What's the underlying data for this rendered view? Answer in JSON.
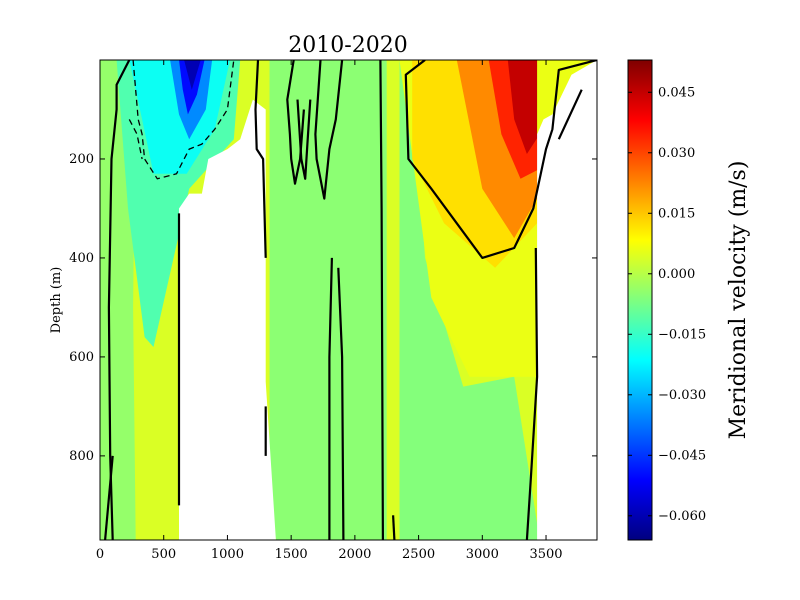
{
  "chart_data": {
    "type": "heatmap",
    "title": "2010-2020",
    "xlabel": "",
    "ylabel": "Depth (m)",
    "xlim": [
      0,
      3900
    ],
    "ylim": [
      970,
      0
    ],
    "xticks": [
      0,
      500,
      1000,
      1500,
      2000,
      2500,
      3000,
      3500
    ],
    "yticks": [
      200,
      400,
      600,
      800
    ],
    "x_tick_labels": [
      "0",
      "500",
      "1000",
      "1500",
      "2000",
      "2500",
      "3000",
      "3500"
    ],
    "y_tick_labels": [
      "200",
      "400",
      "600",
      "800"
    ],
    "colorbar": {
      "label": "Meridional velocity (m/s)",
      "range": [
        -0.066,
        0.053
      ],
      "ticks": [
        -0.06,
        -0.045,
        -0.03,
        -0.015,
        0.0,
        0.015,
        0.03,
        0.045
      ],
      "tick_labels": [
        "−0.060",
        "−0.045",
        "−0.030",
        "−0.015",
        "0.000",
        "0.015",
        "0.030",
        "0.045"
      ],
      "colormap": "jet"
    },
    "fields": [
      {
        "name": "background",
        "value": 0.004,
        "polygon": [
          [
            0,
            0
          ],
          [
            3900,
            0
          ],
          [
            3900,
            970
          ],
          [
            0,
            970
          ]
        ]
      },
      {
        "name": "west-band",
        "value": -0.004,
        "polygon": [
          [
            0,
            0
          ],
          [
            280,
            0
          ],
          [
            260,
            500
          ],
          [
            280,
            970
          ],
          [
            0,
            970
          ]
        ]
      },
      {
        "name": "west-negative",
        "value": -0.012,
        "polygon": [
          [
            130,
            0
          ],
          [
            1100,
            0
          ],
          [
            1050,
            160
          ],
          [
            700,
            260
          ],
          [
            420,
            580
          ],
          [
            350,
            560
          ],
          [
            220,
            300
          ]
        ]
      },
      {
        "name": "cyan-core",
        "value": -0.02,
        "polygon": [
          [
            230,
            0
          ],
          [
            1020,
            0
          ],
          [
            900,
            140
          ],
          [
            680,
            230
          ],
          [
            420,
            230
          ],
          [
            330,
            120
          ]
        ]
      },
      {
        "name": "central-band",
        "value": -0.005,
        "polygon": [
          [
            1330,
            0
          ],
          [
            2250,
            0
          ],
          [
            2250,
            970
          ],
          [
            1380,
            970
          ],
          [
            1330,
            850
          ]
        ]
      },
      {
        "name": "east-shelf",
        "value": -0.006,
        "polygon": [
          [
            2350,
            0
          ],
          [
            2450,
            0
          ],
          [
            2550,
            400
          ],
          [
            2850,
            660
          ],
          [
            3250,
            640
          ],
          [
            3450,
            970
          ],
          [
            2350,
            970
          ]
        ]
      },
      {
        "name": "east-positive",
        "value": 0.006,
        "polygon": [
          [
            2350,
            0
          ],
          [
            3430,
            0
          ],
          [
            3430,
            640
          ],
          [
            2900,
            640
          ],
          [
            2600,
            480
          ]
        ]
      },
      {
        "name": "yellow-band",
        "value": 0.012,
        "polygon": [
          [
            2450,
            0
          ],
          [
            3430,
            0
          ],
          [
            3430,
            330
          ],
          [
            3100,
            420
          ],
          [
            2700,
            330
          ],
          [
            2450,
            200
          ]
        ]
      },
      {
        "name": "orange-band",
        "value": 0.022,
        "polygon": [
          [
            2800,
            0
          ],
          [
            3430,
            0
          ],
          [
            3430,
            280
          ],
          [
            3250,
            360
          ],
          [
            3000,
            260
          ]
        ]
      },
      {
        "name": "red-band",
        "value": 0.034,
        "polygon": [
          [
            3050,
            0
          ],
          [
            3500,
            0
          ],
          [
            3450,
            220
          ],
          [
            3300,
            240
          ],
          [
            3150,
            150
          ]
        ]
      },
      {
        "name": "red-core",
        "value": 0.045,
        "polygon": [
          [
            3200,
            0
          ],
          [
            3500,
            0
          ],
          [
            3450,
            150
          ],
          [
            3350,
            190
          ],
          [
            3250,
            120
          ]
        ]
      },
      {
        "name": "east-edge",
        "value": 0.006,
        "polygon": [
          [
            3430,
            0
          ],
          [
            3900,
            0
          ],
          [
            3900,
            20
          ],
          [
            3600,
            150
          ],
          [
            3430,
            150
          ]
        ]
      },
      {
        "name": "blue-strong",
        "value": -0.035,
        "polygon": [
          [
            550,
            0
          ],
          [
            880,
            0
          ],
          [
            830,
            100
          ],
          [
            700,
            160
          ],
          [
            620,
            110
          ]
        ]
      },
      {
        "name": "blue-core",
        "value": -0.05,
        "polygon": [
          [
            620,
            0
          ],
          [
            820,
            0
          ],
          [
            760,
            70
          ],
          [
            690,
            110
          ],
          [
            650,
            60
          ]
        ]
      },
      {
        "name": "blue-max",
        "value": -0.06,
        "polygon": [
          [
            660,
            0
          ],
          [
            790,
            0
          ],
          [
            720,
            60
          ]
        ]
      }
    ],
    "masked": [
      {
        "name": "bathymetry-left",
        "polygon": [
          [
            620,
            970
          ],
          [
            620,
            300
          ],
          [
            700,
            270
          ],
          [
            800,
            270
          ],
          [
            850,
            200
          ],
          [
            1000,
            180
          ],
          [
            1100,
            160
          ],
          [
            1200,
            80
          ],
          [
            1300,
            100
          ],
          [
            1300,
            650
          ],
          [
            1380,
            970
          ]
        ]
      },
      {
        "name": "bathymetry-right",
        "polygon": [
          [
            3430,
            970
          ],
          [
            3430,
            150
          ],
          [
            3480,
            120
          ],
          [
            3550,
            110
          ],
          [
            3700,
            30
          ],
          [
            3900,
            0
          ],
          [
            3900,
            970
          ]
        ]
      }
    ],
    "contours": [
      {
        "style": "solid",
        "points": [
          [
            230,
            0
          ],
          [
            130,
            50
          ],
          [
            130,
            100
          ],
          [
            90,
            200
          ],
          [
            70,
            500
          ],
          [
            80,
            800
          ],
          [
            100,
            970
          ]
        ]
      },
      {
        "style": "solid",
        "points": [
          [
            100,
            800
          ],
          [
            40,
            970
          ]
        ]
      },
      {
        "style": "dashed",
        "points": [
          [
            260,
            0
          ],
          [
            300,
            120
          ],
          [
            330,
            150
          ],
          [
            350,
            200
          ],
          [
            450,
            240
          ],
          [
            600,
            230
          ],
          [
            700,
            180
          ],
          [
            800,
            170
          ],
          [
            900,
            140
          ],
          [
            1000,
            100
          ],
          [
            1050,
            0
          ]
        ]
      },
      {
        "style": "dashed",
        "points": [
          [
            230,
            120
          ],
          [
            290,
            150
          ],
          [
            330,
            200
          ]
        ]
      },
      {
        "style": "solid",
        "points": [
          [
            620,
            310
          ],
          [
            620,
            900
          ]
        ]
      },
      {
        "style": "solid",
        "points": [
          [
            1240,
            0
          ],
          [
            1220,
            100
          ],
          [
            1230,
            180
          ],
          [
            1280,
            200
          ],
          [
            1300,
            400
          ]
        ]
      },
      {
        "style": "solid",
        "points": [
          [
            1300,
            700
          ],
          [
            1300,
            800
          ]
        ]
      },
      {
        "style": "solid",
        "points": [
          [
            1520,
            0
          ],
          [
            1470,
            80
          ],
          [
            1490,
            150
          ],
          [
            1500,
            200
          ],
          [
            1530,
            250
          ],
          [
            1570,
            200
          ],
          [
            1600,
            100
          ]
        ]
      },
      {
        "style": "solid",
        "points": [
          [
            1550,
            80
          ],
          [
            1580,
            200
          ],
          [
            1610,
            240
          ],
          [
            1630,
            160
          ],
          [
            1650,
            80
          ]
        ]
      },
      {
        "style": "solid",
        "points": [
          [
            1730,
            0
          ],
          [
            1690,
            150
          ],
          [
            1700,
            200
          ],
          [
            1760,
            280
          ],
          [
            1800,
            180
          ],
          [
            1850,
            120
          ],
          [
            1900,
            0
          ]
        ]
      },
      {
        "style": "solid",
        "points": [
          [
            1820,
            400
          ],
          [
            1800,
            600
          ],
          [
            1800,
            970
          ]
        ]
      },
      {
        "style": "solid",
        "points": [
          [
            1870,
            420
          ],
          [
            1900,
            600
          ],
          [
            1910,
            970
          ]
        ]
      },
      {
        "style": "solid",
        "points": [
          [
            2200,
            0
          ],
          [
            2210,
            300
          ],
          [
            2220,
            970
          ]
        ]
      },
      {
        "style": "solid",
        "points": [
          [
            2300,
            920
          ],
          [
            2310,
            970
          ]
        ]
      },
      {
        "style": "solid",
        "points": [
          [
            2550,
            0
          ],
          [
            2400,
            30
          ],
          [
            2420,
            200
          ],
          [
            2600,
            260
          ],
          [
            2800,
            330
          ],
          [
            3000,
            400
          ],
          [
            3250,
            380
          ],
          [
            3400,
            300
          ],
          [
            3450,
            240
          ],
          [
            3500,
            180
          ],
          [
            3550,
            140
          ],
          [
            3600,
            20
          ],
          [
            3900,
            0
          ]
        ]
      },
      {
        "style": "solid",
        "points": [
          [
            3420,
            380
          ],
          [
            3430,
            640
          ],
          [
            3380,
            850
          ],
          [
            3350,
            970
          ]
        ]
      },
      {
        "style": "solid",
        "points": [
          [
            3600,
            160
          ],
          [
            3780,
            60
          ]
        ]
      }
    ]
  }
}
